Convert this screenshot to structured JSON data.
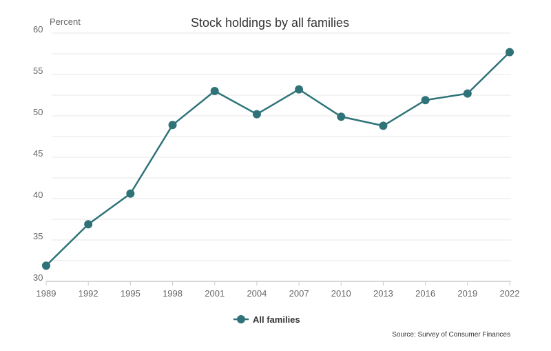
{
  "chart_data": {
    "type": "line",
    "title": "Stock holdings by all families",
    "ylabel": "Percent",
    "xlabel": "",
    "x": [
      "1989",
      "1992",
      "1995",
      "1998",
      "2001",
      "2004",
      "2007",
      "2010",
      "2013",
      "2016",
      "2019",
      "2022"
    ],
    "series": [
      {
        "name": "All families",
        "color": "#2f7378",
        "values": [
          31.9,
          36.9,
          40.6,
          48.9,
          53.0,
          50.2,
          53.2,
          49.9,
          48.8,
          51.9,
          52.7,
          57.7
        ]
      }
    ],
    "ylim": [
      30,
      60
    ],
    "yticks": [
      30,
      35,
      40,
      45,
      50,
      55,
      60
    ],
    "grid": true,
    "legend": "bottom-center",
    "source": "Source: Survey of Consumer Finances"
  }
}
